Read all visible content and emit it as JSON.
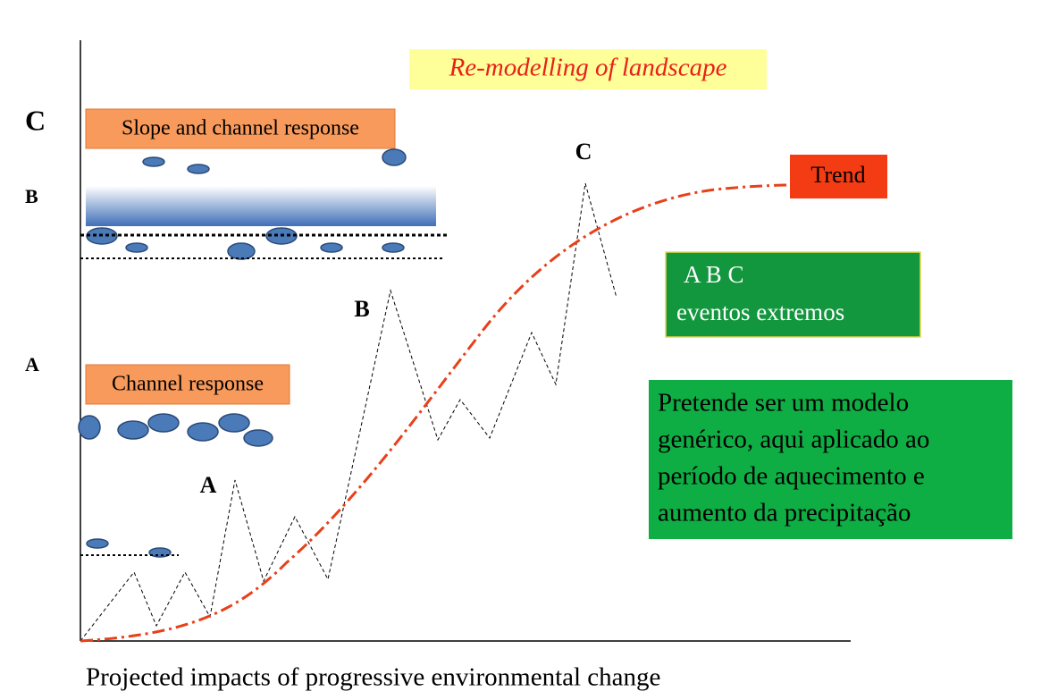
{
  "title": "Re-modelling of landscape",
  "levels": {
    "top": "C",
    "middle": "B",
    "bottom": "A"
  },
  "boxes": {
    "slope_channel": "Slope and channel response",
    "channel": "Channel response"
  },
  "peaks": {
    "a": "A",
    "b": "B",
    "c": "C"
  },
  "trend": "Trend",
  "events": {
    "letters": "A B C",
    "label": "eventos extremos"
  },
  "note": {
    "lines": [
      "Pretende ser um modelo",
      "genérico, aqui aplicado ao",
      "período de aquecimento e",
      "aumento da precipitação"
    ]
  },
  "x_axis_label": "Projected impacts of progressive environmental change"
}
